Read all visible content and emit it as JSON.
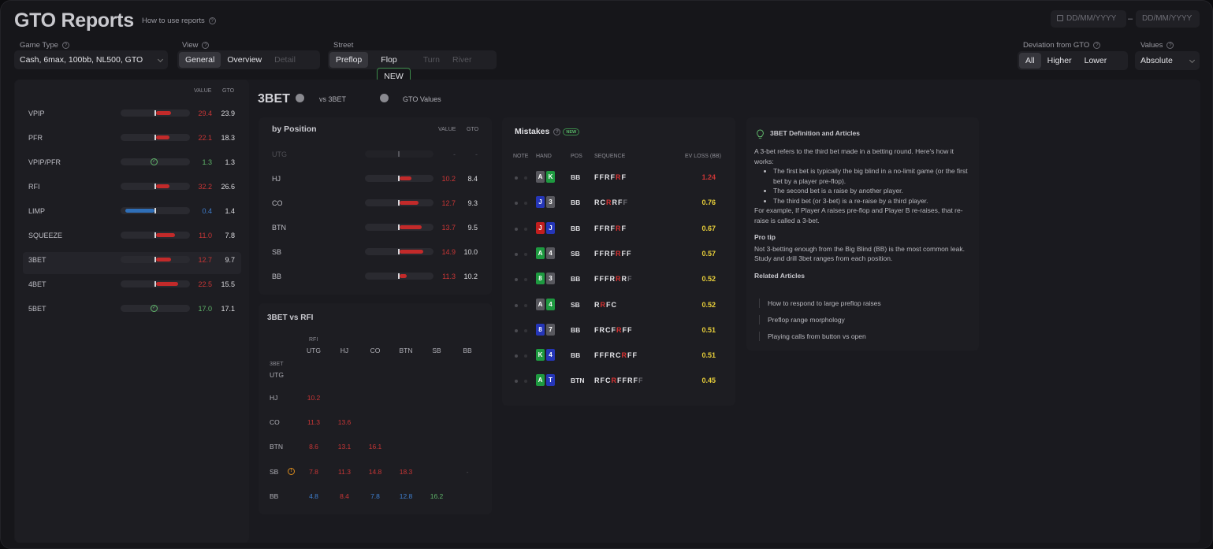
{
  "header": {
    "title": "GTO Reports",
    "howto": "How to use reports",
    "date_from": "DD/MM/YYYY",
    "date_sep": "–",
    "date_to": "DD/MM/YYYY"
  },
  "filters": {
    "game_type": {
      "label": "Game Type",
      "value": "Cash, 6max, 100bb, NL500, GTO"
    },
    "view": {
      "label": "View",
      "options": [
        "General",
        "Overview",
        "Detail"
      ],
      "selected": "General"
    },
    "street": {
      "label": "Street",
      "options": [
        "Preflop",
        "Flop",
        "Turn",
        "River"
      ],
      "selected": "Preflop",
      "new_badge": "NEW"
    },
    "deviation": {
      "label": "Deviation from GTO",
      "options": [
        "All",
        "Higher",
        "Lower"
      ],
      "selected": "All"
    },
    "values": {
      "label": "Values",
      "value": "Absolute"
    }
  },
  "stats": {
    "headers": {
      "value": "VALUE",
      "gto": "GTO"
    },
    "rows": [
      {
        "name": "VPIP",
        "value": "29.4",
        "gto": "23.9",
        "dir": "higher",
        "dev": 0.45
      },
      {
        "name": "PFR",
        "value": "22.1",
        "gto": "18.3",
        "dir": "higher",
        "dev": 0.4
      },
      {
        "name": "VPIP/PFR",
        "value": "1.3",
        "gto": "1.3",
        "dir": "match",
        "dev": 0
      },
      {
        "name": "RFI",
        "value": "32.2",
        "gto": "26.6",
        "dir": "higher",
        "dev": 0.4
      },
      {
        "name": "LIMP",
        "value": "0.4",
        "gto": "1.4",
        "dir": "lower",
        "dev": 0.85
      },
      {
        "name": "SQUEEZE",
        "value": "11.0",
        "gto": "7.8",
        "dir": "higher",
        "dev": 0.55
      },
      {
        "name": "3BET",
        "value": "12.7",
        "gto": "9.7",
        "dir": "higher",
        "dev": 0.45,
        "selected": true
      },
      {
        "name": "4BET",
        "value": "22.5",
        "gto": "15.5",
        "dir": "higher",
        "dev": 0.65
      },
      {
        "name": "5BET",
        "value": "17.0",
        "gto": "17.1",
        "dir": "match",
        "dev": 0
      }
    ]
  },
  "detail": {
    "title": "3BET",
    "toggle1": "vs 3BET",
    "toggle2": "GTO Values"
  },
  "by_position": {
    "title": "by Position",
    "headers": {
      "value": "VALUE",
      "gto": "GTO"
    },
    "rows": [
      {
        "pos": "UTG",
        "value": "-",
        "gto": "-",
        "dir": "none",
        "dev": 0
      },
      {
        "pos": "HJ",
        "value": "10.2",
        "gto": "8.4",
        "dir": "higher",
        "dev": 0.35
      },
      {
        "pos": "CO",
        "value": "12.7",
        "gto": "9.3",
        "dir": "higher",
        "dev": 0.55
      },
      {
        "pos": "BTN",
        "value": "13.7",
        "gto": "9.5",
        "dir": "higher",
        "dev": 0.65
      },
      {
        "pos": "SB",
        "value": "14.9",
        "gto": "10.0",
        "dir": "higher",
        "dev": 0.7
      },
      {
        "pos": "BB",
        "value": "11.3",
        "gto": "10.2",
        "dir": "higher",
        "dev": 0.2
      }
    ]
  },
  "vs_rfi": {
    "title": "3BET vs RFI",
    "col_caption": "RFI",
    "row_caption": "3BET",
    "cols": [
      "UTG",
      "HJ",
      "CO",
      "BTN",
      "SB",
      "BB"
    ],
    "rows": [
      {
        "pos": "UTG",
        "cells": []
      },
      {
        "pos": "HJ",
        "cells": [
          {
            "v": "10.2",
            "c": "red"
          }
        ]
      },
      {
        "pos": "CO",
        "cells": [
          {
            "v": "11.3",
            "c": "red"
          },
          {
            "v": "13.6",
            "c": "red"
          }
        ]
      },
      {
        "pos": "BTN",
        "cells": [
          {
            "v": "8.6",
            "c": "red"
          },
          {
            "v": "13.1",
            "c": "red"
          },
          {
            "v": "16.1",
            "c": "red"
          }
        ]
      },
      {
        "pos": "SB",
        "warn": true,
        "cells": [
          {
            "v": "7.8",
            "c": "red"
          },
          {
            "v": "11.3",
            "c": "red"
          },
          {
            "v": "14.8",
            "c": "red"
          },
          {
            "v": "18.3",
            "c": "red"
          },
          {
            "v": "",
            "c": "red"
          },
          {
            "v": "-",
            "c": "gray"
          }
        ]
      },
      {
        "pos": "BB",
        "cells": [
          {
            "v": "4.8",
            "c": "blue"
          },
          {
            "v": "8.4",
            "c": "red"
          },
          {
            "v": "7.8",
            "c": "blue"
          },
          {
            "v": "12.8",
            "c": "blue"
          },
          {
            "v": "16.2",
            "c": "green"
          }
        ]
      }
    ]
  },
  "mistakes": {
    "title": "Mistakes",
    "badge": "NEW",
    "headers": {
      "note": "NOTE",
      "hand": "HAND",
      "pos": "POS",
      "seq": "SEQUENCE",
      "ev": "EV LOSS (BB)"
    },
    "rows": [
      {
        "cards": [
          {
            "r": "A",
            "s": "n"
          },
          {
            "r": "K",
            "s": "g"
          }
        ],
        "pos": "BB",
        "seq": [
          [
            "FFRF",
            "w"
          ],
          [
            "R",
            "r"
          ],
          [
            "F",
            "w"
          ]
        ],
        "ev": "1.24",
        "evc": "red"
      },
      {
        "cards": [
          {
            "r": "J",
            "s": "b"
          },
          {
            "r": "3",
            "s": "n"
          }
        ],
        "pos": "BB",
        "seq": [
          [
            "RC",
            "w"
          ],
          [
            "R",
            "r"
          ],
          [
            "RF",
            "w"
          ],
          [
            "F",
            "g"
          ]
        ],
        "ev": "0.76",
        "evc": "yel"
      },
      {
        "cards": [
          {
            "r": "J",
            "s": "r"
          },
          {
            "r": "J",
            "s": "b"
          }
        ],
        "pos": "BB",
        "seq": [
          [
            "FFRF",
            "w"
          ],
          [
            "R",
            "r"
          ],
          [
            "F",
            "w"
          ]
        ],
        "ev": "0.67",
        "evc": "yel"
      },
      {
        "cards": [
          {
            "r": "A",
            "s": "g"
          },
          {
            "r": "4",
            "s": "n"
          }
        ],
        "pos": "SB",
        "seq": [
          [
            "FFRF",
            "w"
          ],
          [
            "R",
            "r"
          ],
          [
            "FF",
            "w"
          ]
        ],
        "ev": "0.57",
        "evc": "yel"
      },
      {
        "cards": [
          {
            "r": "8",
            "s": "g"
          },
          {
            "r": "3",
            "s": "n"
          }
        ],
        "pos": "BB",
        "seq": [
          [
            "FFFR",
            "w"
          ],
          [
            "R",
            "r"
          ],
          [
            "R",
            "w"
          ],
          [
            "F",
            "g"
          ]
        ],
        "ev": "0.52",
        "evc": "yel"
      },
      {
        "cards": [
          {
            "r": "A",
            "s": "n"
          },
          {
            "r": "4",
            "s": "g"
          }
        ],
        "pos": "SB",
        "seq": [
          [
            "R",
            "w"
          ],
          [
            "R",
            "r"
          ],
          [
            "FC",
            "w"
          ]
        ],
        "ev": "0.52",
        "evc": "yel"
      },
      {
        "cards": [
          {
            "r": "8",
            "s": "b"
          },
          {
            "r": "7",
            "s": "n"
          }
        ],
        "pos": "BB",
        "seq": [
          [
            "FRCF",
            "w"
          ],
          [
            "R",
            "r"
          ],
          [
            "FF",
            "w"
          ]
        ],
        "ev": "0.51",
        "evc": "yel"
      },
      {
        "cards": [
          {
            "r": "K",
            "s": "g"
          },
          {
            "r": "4",
            "s": "b"
          }
        ],
        "pos": "BB",
        "seq": [
          [
            "FFFRC",
            "w"
          ],
          [
            "R",
            "r"
          ],
          [
            "FF",
            "w"
          ]
        ],
        "ev": "0.51",
        "evc": "yel"
      },
      {
        "cards": [
          {
            "r": "A",
            "s": "g"
          },
          {
            "r": "T",
            "s": "b"
          }
        ],
        "pos": "BTN",
        "seq": [
          [
            "RFC",
            "w"
          ],
          [
            "R",
            "r"
          ],
          [
            "FFRF",
            "w"
          ],
          [
            "F",
            "g"
          ]
        ],
        "ev": "0.45",
        "evc": "yel"
      }
    ]
  },
  "definition": {
    "title": "3BET Definition and Articles",
    "intro": "A 3-bet refers to the third bet made in a betting round. Here's how it works:",
    "bullets": [
      "The first bet is typically the big blind in a no-limit game (or the first bet by a player pre-flop).",
      "The second bet is a raise by another player.",
      "The third bet (or 3-bet) is a re-raise by a third player."
    ],
    "example": "For example, If Player A raises pre-flop and Player B re-raises, that re-raise is called a 3-bet.",
    "protip_title": "Pro tip",
    "protip": "Not 3-betting enough from the Big Blind (BB) is the most common leak. Study and drill 3bet ranges from each position.",
    "related_title": "Related Articles",
    "articles": [
      "How to respond to large preflop raises",
      "Preflop range morphology",
      "Playing calls from button vs open"
    ]
  },
  "colors": {
    "red": "#c93636",
    "blue": "#3f7fd0",
    "green": "#5fb56a",
    "yellow": "#e8cf3a",
    "accent_green": "#1e9a40"
  }
}
